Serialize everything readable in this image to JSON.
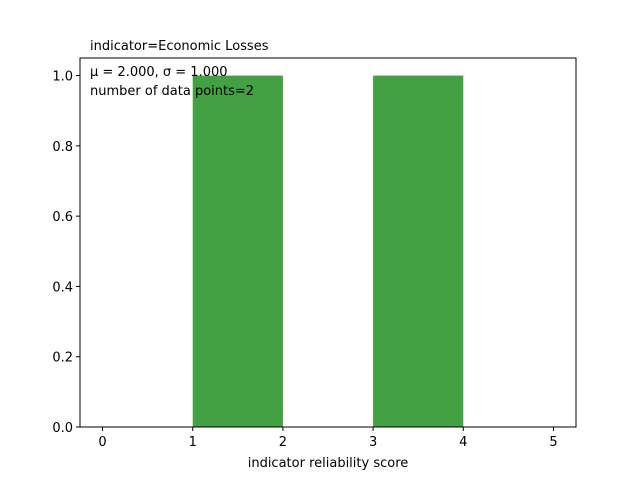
{
  "chart_data": {
    "type": "bar",
    "title": "indicator=Economic Losses",
    "xlabel": "indicator reliability score",
    "ylabel": "",
    "xlim": [
      -0.25,
      5.25
    ],
    "ylim": [
      0,
      1.05
    ],
    "x_ticks": [
      0,
      1,
      2,
      3,
      4,
      5
    ],
    "y_ticks": [
      0.0,
      0.2,
      0.4,
      0.6,
      0.8,
      1.0
    ],
    "x_tick_labels": [
      "0",
      "1",
      "2",
      "3",
      "4",
      "5"
    ],
    "y_tick_labels": [
      "0.0",
      "0.2",
      "0.4",
      "0.6",
      "0.8",
      "1.0"
    ],
    "bins": [
      {
        "start": 1,
        "end": 2,
        "value": 1.0
      },
      {
        "start": 3,
        "end": 4,
        "value": 1.0
      }
    ],
    "bar_color": "#43a043",
    "grid": false,
    "annotations": {
      "stats": "μ = 2.000,  σ = 1.000",
      "count": "number of data points=2"
    }
  }
}
